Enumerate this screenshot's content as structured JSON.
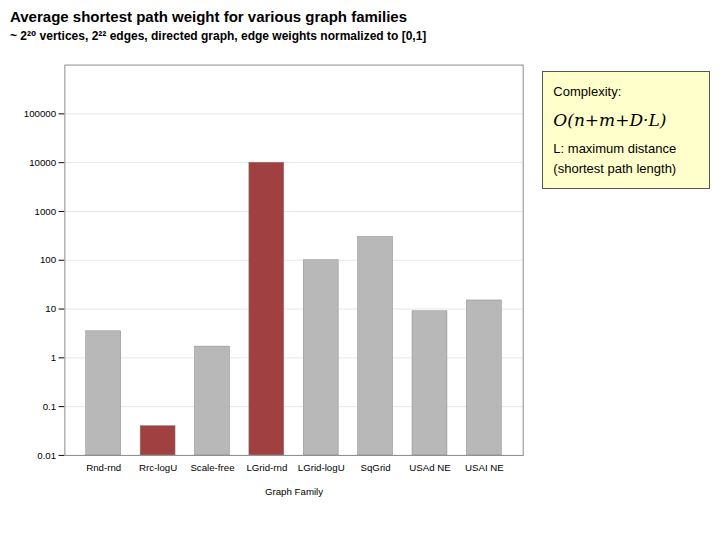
{
  "chart_data": {
    "type": "bar",
    "title": "Average shortest path weight for various graph families",
    "subtitle": "~ 2²⁰ vertices, 2²² edges, directed graph, edge weights normalized to [0,1]",
    "xlabel": "Graph Family",
    "categories": [
      "Rnd-rnd",
      "Rrc-logU",
      "Scale-free",
      "LGrid-rnd",
      "LGrid-logU",
      "SqGrid",
      "USAd NE",
      "USAI NE"
    ],
    "values": [
      3.5,
      0.04,
      1.7,
      10000,
      100,
      300,
      9,
      15
    ],
    "colors": [
      "#b8b8b8",
      "#a04040",
      "#b8b8b8",
      "#a04040",
      "#b8b8b8",
      "#b8b8b8",
      "#b8b8b8",
      "#b8b8b8"
    ],
    "log": "y",
    "ylim": [
      0.01,
      1000000
    ],
    "yticks": [
      0.01,
      0.1,
      1,
      10,
      100,
      1000,
      10000,
      100000
    ],
    "grid": true,
    "annotations": [
      "Complexity:",
      "O(n+m+D·L)",
      "L: maximum distance\n(shortest path length)"
    ]
  }
}
